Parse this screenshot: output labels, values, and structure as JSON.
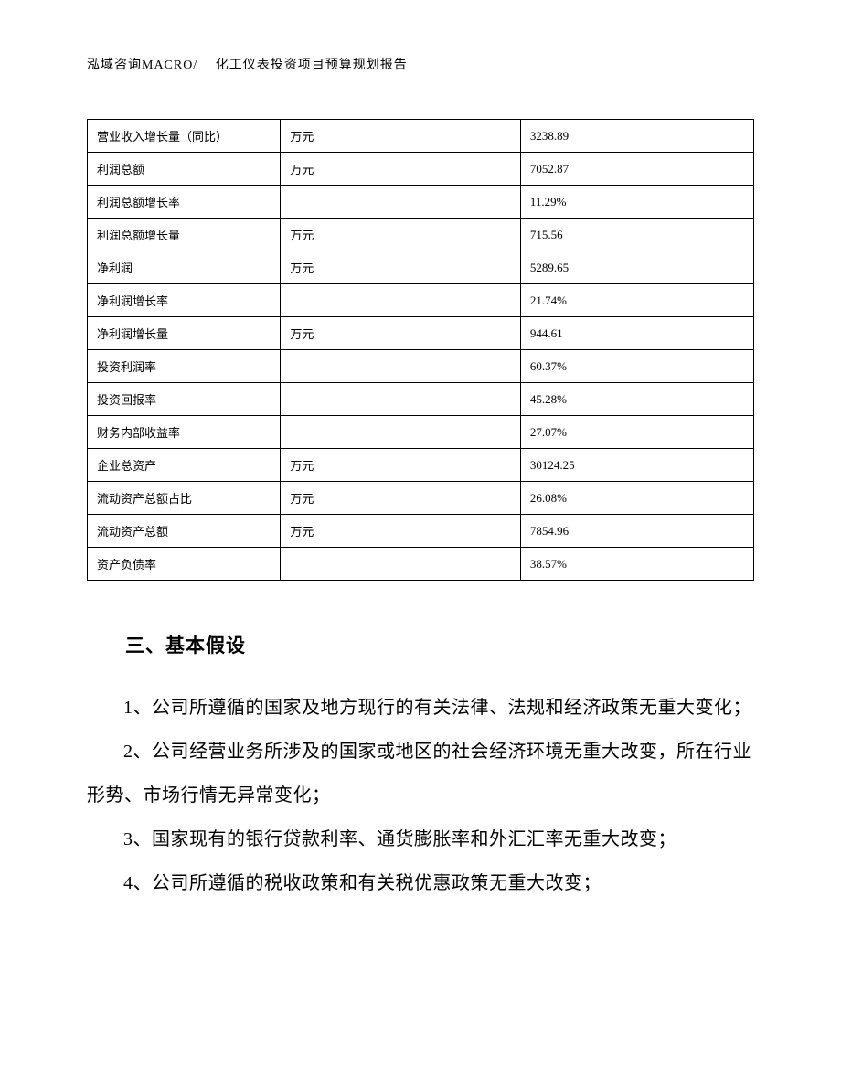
{
  "header": {
    "text": "泓域咨询MACRO/　 化工仪表投资项目预算规划报告"
  },
  "table": {
    "rows": [
      {
        "label": "营业收入增长量（同比）",
        "unit": "万元",
        "value": "3238.89"
      },
      {
        "label": "利润总额",
        "unit": "万元",
        "value": "7052.87"
      },
      {
        "label": "利润总额增长率",
        "unit": "",
        "value": "11.29%"
      },
      {
        "label": "利润总额增长量",
        "unit": "万元",
        "value": "715.56"
      },
      {
        "label": "净利润",
        "unit": "万元",
        "value": "5289.65"
      },
      {
        "label": "净利润增长率",
        "unit": "",
        "value": "21.74%"
      },
      {
        "label": "净利润增长量",
        "unit": "万元",
        "value": "944.61"
      },
      {
        "label": "投资利润率",
        "unit": "",
        "value": "60.37%"
      },
      {
        "label": "投资回报率",
        "unit": "",
        "value": "45.28%"
      },
      {
        "label": "财务内部收益率",
        "unit": "",
        "value": "27.07%"
      },
      {
        "label": "企业总资产",
        "unit": "万元",
        "value": "30124.25"
      },
      {
        "label": "流动资产总额占比",
        "unit": "万元",
        "value": "26.08%"
      },
      {
        "label": "流动资产总额",
        "unit": "万元",
        "value": "7854.96"
      },
      {
        "label": "资产负债率",
        "unit": "",
        "value": "38.57%"
      }
    ]
  },
  "section": {
    "title": "三、基本假设",
    "paragraphs": [
      "1、公司所遵循的国家及地方现行的有关法律、法规和经济政策无重大变化；",
      "2、公司经营业务所涉及的国家或地区的社会经济环境无重大改变，所在行业形势、市场行情无异常变化；",
      "3、国家现有的银行贷款利率、通货膨胀率和外汇汇率无重大改变；",
      "4、公司所遵循的税收政策和有关税优惠政策无重大改变；"
    ]
  }
}
